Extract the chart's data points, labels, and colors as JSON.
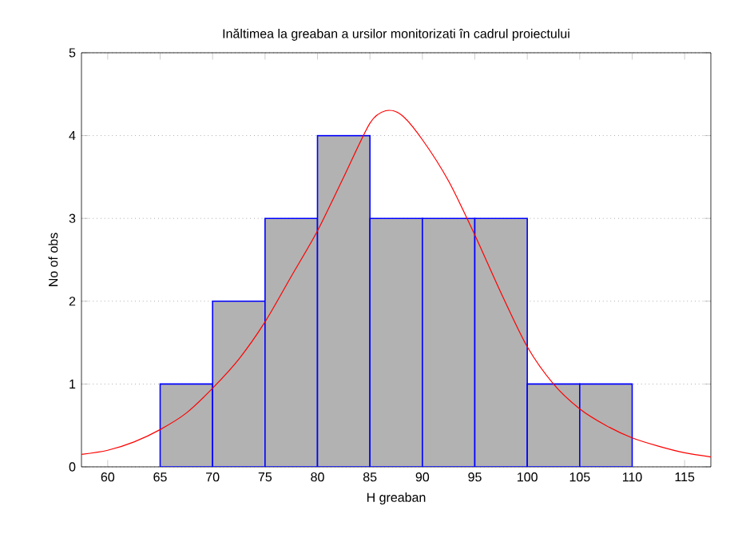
{
  "chart_data": {
    "type": "histogram",
    "title": "Inăltimea la greaban a ursilor monitorizati în cadrul proiectului",
    "xlabel": "H greaban",
    "ylabel": "No of obs",
    "bins": [
      65,
      70,
      75,
      80,
      85,
      90,
      95,
      100,
      105,
      110
    ],
    "values": [
      1,
      2,
      3,
      4,
      3,
      3,
      3,
      1,
      1
    ],
    "color": "#0000ff",
    "series": [
      {
        "type": "line",
        "color": "#ff0000",
        "x": [
          57.5,
          60,
          62.5,
          65,
          67.5,
          70,
          72.5,
          75,
          77.5,
          80,
          82.5,
          85,
          86.5,
          88,
          90,
          92.5,
          95,
          97.5,
          100,
          102.5,
          105,
          107.5,
          110,
          112.5,
          115,
          117.5
        ],
        "values": [
          0.15,
          0.2,
          0.3,
          0.45,
          0.65,
          0.95,
          1.3,
          1.75,
          2.3,
          2.85,
          3.5,
          4.15,
          4.3,
          4.25,
          3.95,
          3.45,
          2.8,
          2.1,
          1.45,
          1.0,
          0.7,
          0.5,
          0.35,
          0.25,
          0.17,
          0.12
        ]
      }
    ],
    "xlim": [
      57.5,
      117.5
    ],
    "ylim": [
      0,
      5
    ],
    "xticks": [
      60,
      65,
      70,
      75,
      80,
      85,
      90,
      95,
      100,
      105,
      110,
      115
    ],
    "yticks": [
      0,
      1,
      2,
      3,
      4,
      5
    ],
    "grid": "y"
  }
}
